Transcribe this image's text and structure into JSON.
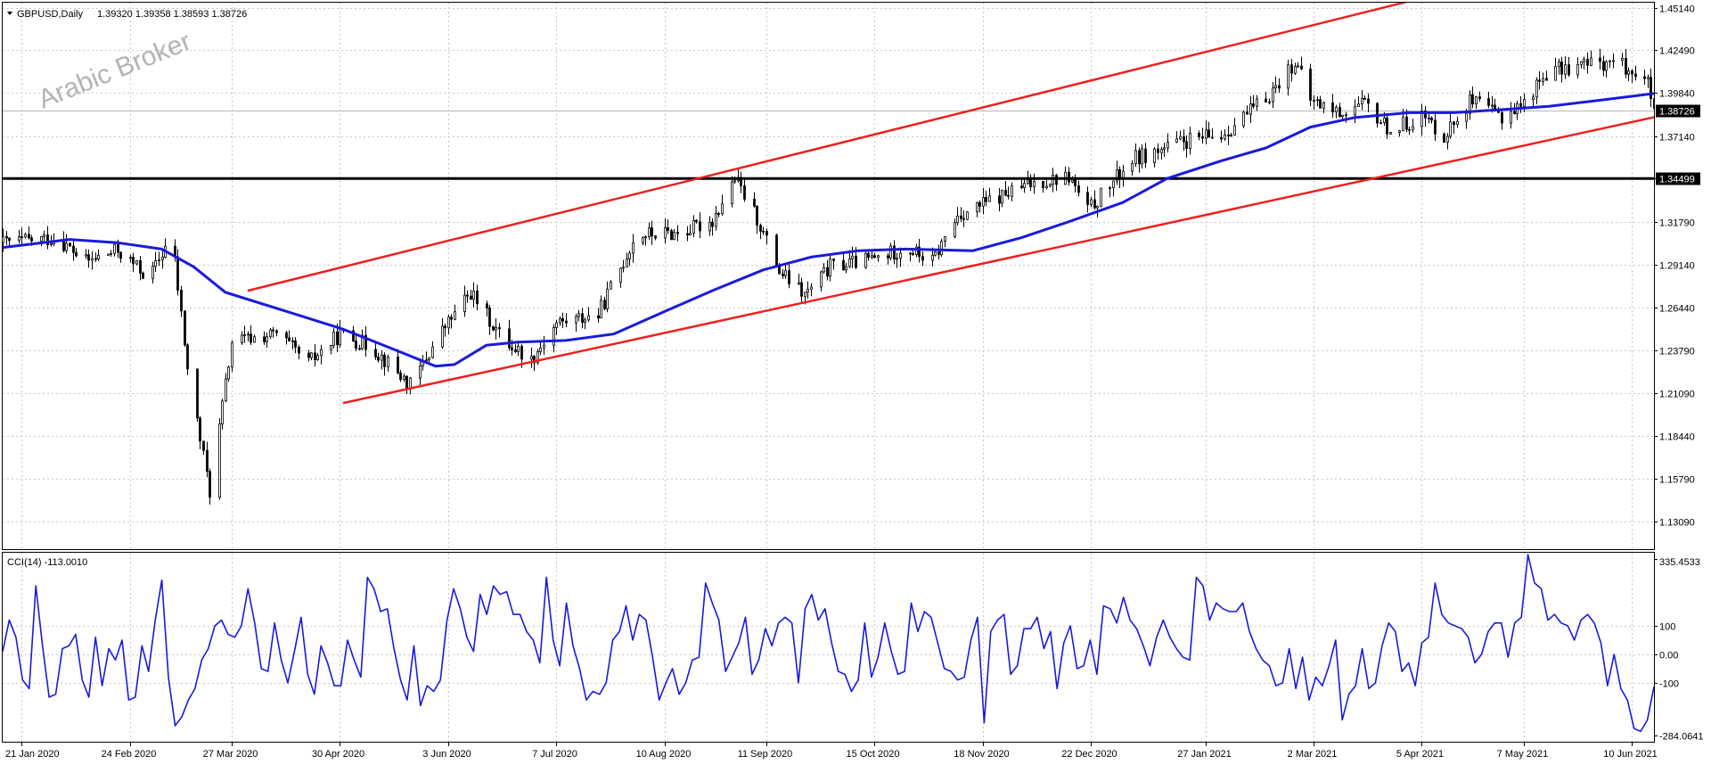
{
  "header": {
    "symbol": "GBPUSD,Daily",
    "ohlc": "1.39320 1.39358 1.38593 1.38726"
  },
  "watermark": "Arabic Broker",
  "indicator": {
    "label": "CCI(14) -113.0010"
  },
  "colors": {
    "candle": "#000000",
    "ma": "#1a1adc",
    "channel": "#ee2020",
    "support": "#000000",
    "cci": "#1a1adc",
    "grid": "#c8c8c8"
  },
  "chart_data": [
    {
      "type": "candlestick",
      "title": "",
      "x_range": [
        "2020-01-15",
        "2021-06-17"
      ],
      "ylim": [
        1.115,
        1.4535
      ],
      "y_ticks": [
        "1.45140",
        "1.42490",
        "1.39840",
        "1.37140",
        "1.34499",
        "1.31790",
        "1.29140",
        "1.26440",
        "1.23790",
        "1.21090",
        "1.18440",
        "1.15790",
        "1.13090"
      ],
      "x_ticks": [
        "21 Jan 2020",
        "24 Feb 2020",
        "27 Mar 2020",
        "30 Apr 2020",
        "3 Jun 2020",
        "7 Jul 2020",
        "10 Aug 2020",
        "11 Sep 2020",
        "15 Oct 2020",
        "18 Nov 2020",
        "22 Dec 2020",
        "27 Jan 2021",
        "2 Mar 2021",
        "5 Apr 2021",
        "7 May 2021",
        "10 Jun 2021"
      ],
      "price_path": [
        [
          "2020-01-15",
          1.305
        ],
        [
          "2020-02-01",
          1.308
        ],
        [
          "2020-02-10",
          1.293
        ],
        [
          "2020-02-20",
          1.3
        ],
        [
          "2020-03-01",
          1.283
        ],
        [
          "2020-03-08",
          1.31
        ],
        [
          "2020-03-13",
          1.226
        ],
        [
          "2020-03-20",
          1.15
        ],
        [
          "2020-03-27",
          1.243
        ],
        [
          "2020-04-10",
          1.248
        ],
        [
          "2020-04-20",
          1.23
        ],
        [
          "2020-04-30",
          1.248
        ],
        [
          "2020-05-10",
          1.24
        ],
        [
          "2020-05-22",
          1.216
        ],
        [
          "2020-06-01",
          1.25
        ],
        [
          "2020-06-10",
          1.274
        ],
        [
          "2020-06-20",
          1.245
        ],
        [
          "2020-06-29",
          1.232
        ],
        [
          "2020-07-07",
          1.255
        ],
        [
          "2020-07-20",
          1.26
        ],
        [
          "2020-08-01",
          1.31
        ],
        [
          "2020-08-15",
          1.311
        ],
        [
          "2020-08-25",
          1.319
        ],
        [
          "2020-09-01",
          1.345
        ],
        [
          "2020-09-08",
          1.32
        ],
        [
          "2020-09-15",
          1.287
        ],
        [
          "2020-09-23",
          1.272
        ],
        [
          "2020-10-01",
          1.29
        ],
        [
          "2020-10-15",
          1.295
        ],
        [
          "2020-10-25",
          1.302
        ],
        [
          "2020-11-02",
          1.293
        ],
        [
          "2020-11-10",
          1.322
        ],
        [
          "2020-11-25",
          1.335
        ],
        [
          "2020-12-05",
          1.343
        ],
        [
          "2020-12-15",
          1.346
        ],
        [
          "2020-12-21",
          1.325
        ],
        [
          "2021-01-04",
          1.357
        ],
        [
          "2021-01-12",
          1.362
        ],
        [
          "2021-01-20",
          1.368
        ],
        [
          "2021-02-01",
          1.372
        ],
        [
          "2021-02-15",
          1.395
        ],
        [
          "2021-02-24",
          1.418
        ],
        [
          "2021-03-01",
          1.394
        ],
        [
          "2021-03-10",
          1.386
        ],
        [
          "2021-03-18",
          1.391
        ],
        [
          "2021-03-26",
          1.375
        ],
        [
          "2021-04-05",
          1.384
        ],
        [
          "2021-04-12",
          1.372
        ],
        [
          "2021-04-20",
          1.393
        ],
        [
          "2021-04-30",
          1.384
        ],
        [
          "2021-05-07",
          1.392
        ],
        [
          "2021-05-14",
          1.411
        ],
        [
          "2021-05-25",
          1.416
        ],
        [
          "2021-06-05",
          1.418
        ],
        [
          "2021-06-11",
          1.411
        ],
        [
          "2021-06-15",
          1.404
        ],
        [
          "2021-06-17",
          1.387
        ]
      ],
      "moving_average": [
        [
          "2020-01-15",
          1.302
        ],
        [
          "2020-02-05",
          1.307
        ],
        [
          "2020-02-20",
          1.305
        ],
        [
          "2020-03-05",
          1.301
        ],
        [
          "2020-03-15",
          1.29
        ],
        [
          "2020-03-25",
          1.274
        ],
        [
          "2020-04-15",
          1.261
        ],
        [
          "2020-05-01",
          1.251
        ],
        [
          "2020-05-15",
          1.24
        ],
        [
          "2020-05-30",
          1.228
        ],
        [
          "2020-06-05",
          1.229
        ],
        [
          "2020-06-15",
          1.241
        ],
        [
          "2020-06-25",
          1.243
        ],
        [
          "2020-07-10",
          1.244
        ],
        [
          "2020-07-25",
          1.248
        ],
        [
          "2020-08-10",
          1.262
        ],
        [
          "2020-08-25",
          1.275
        ],
        [
          "2020-09-10",
          1.288
        ],
        [
          "2020-09-25",
          1.296
        ],
        [
          "2020-10-10",
          1.3
        ],
        [
          "2020-10-25",
          1.301
        ],
        [
          "2020-11-15",
          1.3
        ],
        [
          "2020-11-30",
          1.308
        ],
        [
          "2020-12-15",
          1.318
        ],
        [
          "2021-01-01",
          1.33
        ],
        [
          "2021-01-15",
          1.345
        ],
        [
          "2021-02-01",
          1.356
        ],
        [
          "2021-02-15",
          1.364
        ],
        [
          "2021-03-01",
          1.377
        ],
        [
          "2021-03-15",
          1.383
        ],
        [
          "2021-04-01",
          1.386
        ],
        [
          "2021-04-15",
          1.386
        ],
        [
          "2021-05-01",
          1.388
        ],
        [
          "2021-05-15",
          1.39
        ],
        [
          "2021-06-01",
          1.394
        ],
        [
          "2021-06-17",
          1.398
        ]
      ],
      "channel_upper": [
        [
          "2020-04-01",
          1.275
        ],
        [
          "2021-03-31",
          1.455
        ]
      ],
      "channel_lower": [
        [
          "2020-05-01",
          1.205
        ],
        [
          "2021-11-30",
          1.455
        ]
      ],
      "support_level": 1.34499,
      "current_price": "1.38726"
    },
    {
      "type": "line",
      "title": "",
      "series": [
        {
          "values": [
            10,
            120,
            60,
            -90,
            -120,
            240,
            30,
            -150,
            -140,
            20,
            30,
            70,
            -90,
            -150,
            60,
            -110,
            20,
            -20,
            50,
            -160,
            -150,
            30,
            -60,
            120,
            260,
            -80,
            -250,
            -220,
            -160,
            -120,
            -20,
            20,
            100,
            120,
            70,
            60,
            100,
            230,
            110,
            -50,
            -60,
            110,
            -20,
            -100,
            10,
            130,
            -70,
            -140,
            30,
            -30,
            -110,
            -110,
            50,
            -20,
            -80,
            270,
            230,
            150,
            160,
            20,
            -90,
            -160,
            30,
            -180,
            -110,
            -130,
            -90,
            120,
            230,
            160,
            60,
            10,
            210,
            140,
            240,
            210,
            220,
            140,
            140,
            80,
            50,
            -30,
            270,
            50,
            -40,
            180,
            30,
            -50,
            -160,
            -130,
            -140,
            -100,
            50,
            80,
            170,
            50,
            140,
            120,
            -10,
            -160,
            -100,
            -50,
            -140,
            -100,
            -20,
            -10,
            250,
            180,
            120,
            -60,
            -10,
            40,
            130,
            -70,
            -20,
            90,
            30,
            110,
            130,
            110,
            -100,
            160,
            210,
            120,
            160,
            40,
            -60,
            -70,
            -130,
            -90,
            110,
            -80,
            -10,
            110,
            10,
            -70,
            -60,
            180,
            80,
            150,
            130,
            40,
            -50,
            -60,
            -90,
            -80,
            50,
            130,
            -240,
            80,
            120,
            140,
            -70,
            -40,
            90,
            90,
            130,
            20,
            80,
            -120,
            40,
            100,
            -50,
            -40,
            50,
            -70,
            170,
            160,
            110,
            200,
            120,
            90,
            30,
            -40,
            60,
            120,
            60,
            20,
            -10,
            -20,
            270,
            240,
            120,
            180,
            160,
            150,
            150,
            180,
            80,
            20,
            -20,
            -40,
            -110,
            -100,
            20,
            -120,
            -10,
            -160,
            -80,
            -110,
            -40,
            50,
            -230,
            -140,
            -110,
            20,
            -120,
            -100,
            30,
            110,
            80,
            -60,
            -30,
            -110,
            40,
            60,
            250,
            140,
            110,
            100,
            90,
            60,
            -30,
            0,
            80,
            110,
            110,
            -10,
            110,
            130,
            350,
            250,
            230,
            120,
            140,
            110,
            100,
            50,
            120,
            140,
            110,
            40,
            -110,
            0,
            -120,
            -160,
            -260,
            -270,
            -230,
            -113
          ]
        }
      ],
      "ylim": [
        -300,
        350
      ],
      "y_ticks": [
        "335.4533",
        "100",
        "0.00",
        "-100",
        "-284.0641"
      ]
    }
  ]
}
